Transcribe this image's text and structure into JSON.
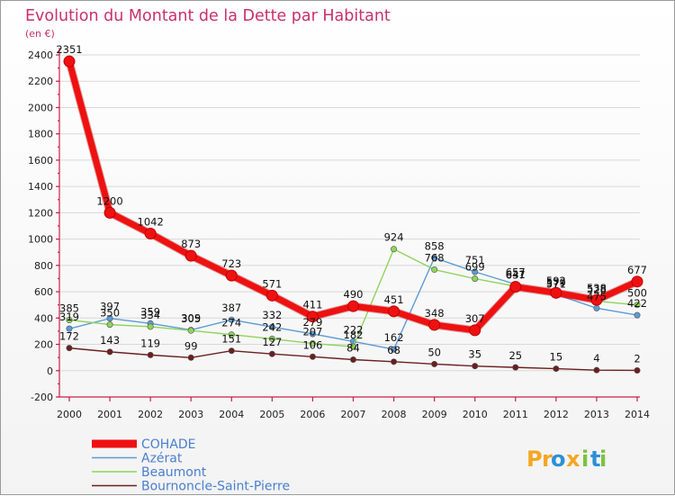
{
  "chart_data": {
    "type": "line",
    "title": "Evolution du Montant de la Dette par Habitant",
    "subtitle": "(en €)",
    "xlabel": "",
    "ylabel": "",
    "ylim": [
      -200,
      2400
    ],
    "yticks": [
      -200,
      0,
      200,
      400,
      600,
      800,
      1000,
      1200,
      1400,
      1600,
      1800,
      2000,
      2200,
      2400
    ],
    "x": [
      "2000",
      "2001",
      "2002",
      "2003",
      "2004",
      "2005",
      "2006",
      "2007",
      "2008",
      "2009",
      "2010",
      "2011",
      "2012",
      "2013",
      "2014"
    ],
    "grid": true,
    "legend": "bottom-left",
    "series": [
      {
        "name": "COHADE",
        "color": "#ee1111",
        "bold": true,
        "values": [
          2351,
          1200,
          1042,
          873,
          723,
          571,
          411,
          490,
          451,
          348,
          307,
          637,
          592,
          538,
          677
        ]
      },
      {
        "name": "Azérat",
        "color": "#5b9bd5",
        "bold": false,
        "values": [
          319,
          397,
          359,
          309,
          387,
          332,
          279,
          222,
          162,
          858,
          751,
          657,
          579,
          475,
          422
        ]
      },
      {
        "name": "Beaumont",
        "color": "#8fd45a",
        "bold": false,
        "values": [
          385,
          350,
          334,
          305,
          274,
          242,
          207,
          182,
          924,
          768,
          699,
          641,
          571,
          528,
          500
        ]
      },
      {
        "name": "Bournoncle-Saint-Pierre",
        "color": "#6b1f1f",
        "bold": false,
        "values": [
          172,
          143,
          119,
          99,
          151,
          127,
          106,
          84,
          68,
          50,
          35,
          25,
          15,
          4,
          2
        ]
      }
    ]
  },
  "brand": {
    "letters": [
      "P",
      "r",
      "o",
      "x",
      "i",
      "t",
      "i"
    ],
    "colors": [
      "#f5a623",
      "#f5a623",
      "#2e8fd6",
      "#f5a623",
      "#7cc242",
      "#2e8fd6",
      "#7cc242"
    ]
  }
}
